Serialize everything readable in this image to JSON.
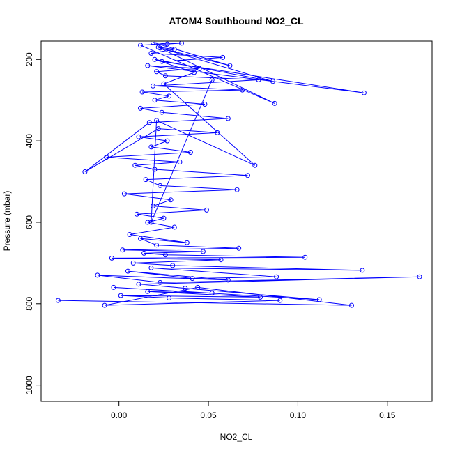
{
  "chart_data": {
    "type": "line",
    "title": "ATOM4 Southbound NO2_CL",
    "xlabel": "NO2_CL",
    "ylabel": "Pressure (mbar)",
    "xlim": [
      -0.0435,
      0.175
    ],
    "ylim": [
      1040,
      155
    ],
    "y_axis_reversed": true,
    "x_ticks": [
      0.0,
      0.05,
      0.1,
      0.15
    ],
    "x_tick_labels": [
      "0.00",
      "0.05",
      "0.10",
      "0.15"
    ],
    "y_ticks": [
      200,
      400,
      600,
      800,
      1000
    ],
    "y_tick_labels": [
      "200",
      "400",
      "600",
      "800",
      "1000"
    ],
    "grid": false,
    "legend": "none",
    "marker": "open-circle",
    "line_color": "#0000ff",
    "series": [
      {
        "x": [
          -0.034,
          0.13,
          0.044,
          -0.008,
          0.09,
          0.028,
          0.001,
          0.079,
          0.016,
          0.052,
          -0.003,
          0.112,
          0.037,
          0.011,
          0.168,
          0.023,
          -0.012,
          0.061,
          0.005,
          0.041,
          0.088,
          0.018,
          0.136,
          0.03,
          0.008,
          0.057,
          -0.004,
          0.104,
          0.026,
          0.014,
          0.047,
          0.002,
          0.067,
          0.021,
          0.012,
          0.038,
          0.006,
          0.031,
          0.016,
          0.025,
          0.01,
          0.049,
          0.019,
          0.029,
          0.003,
          0.066,
          0.023,
          0.015,
          0.072,
          0.02,
          0.009,
          0.034,
          -0.007,
          0.04,
          0.018,
          0.027,
          0.011,
          0.055,
          0.022,
          -0.019,
          0.017,
          0.061,
          0.024,
          0.012,
          0.048,
          0.02,
          0.028,
          0.013,
          0.069,
          0.019,
          0.078,
          0.026,
          0.021,
          0.045,
          0.016,
          0.137,
          0.024,
          0.058,
          0.018,
          0.031,
          0.022,
          0.087,
          0.012,
          0.035,
          0.027,
          0.019,
          0.062,
          0.023,
          0.086,
          0.02,
          0.042,
          0.025,
          0.076,
          0.021,
          0.018,
          0.052
        ],
        "y": [
          792,
          804,
          760,
          804,
          792,
          786,
          780,
          784,
          770,
          774,
          760,
          790,
          762,
          752,
          734,
          748,
          730,
          742,
          720,
          738,
          734,
          712,
          718,
          706,
          700,
          692,
          688,
          686,
          680,
          676,
          672,
          668,
          664,
          656,
          640,
          650,
          630,
          612,
          600,
          590,
          580,
          570,
          560,
          545,
          530,
          520,
          510,
          495,
          485,
          470,
          460,
          452,
          440,
          428,
          415,
          400,
          390,
          380,
          370,
          476,
          355,
          345,
          330,
          320,
          310,
          300,
          290,
          280,
          275,
          265,
          250,
          240,
          230,
          222,
          215,
          282,
          205,
          195,
          185,
          175,
          170,
          308,
          165,
          160,
          162,
          158,
          215,
          172,
          254,
          200,
          232,
          260,
          460,
          350,
          600,
          250
        ]
      }
    ]
  }
}
